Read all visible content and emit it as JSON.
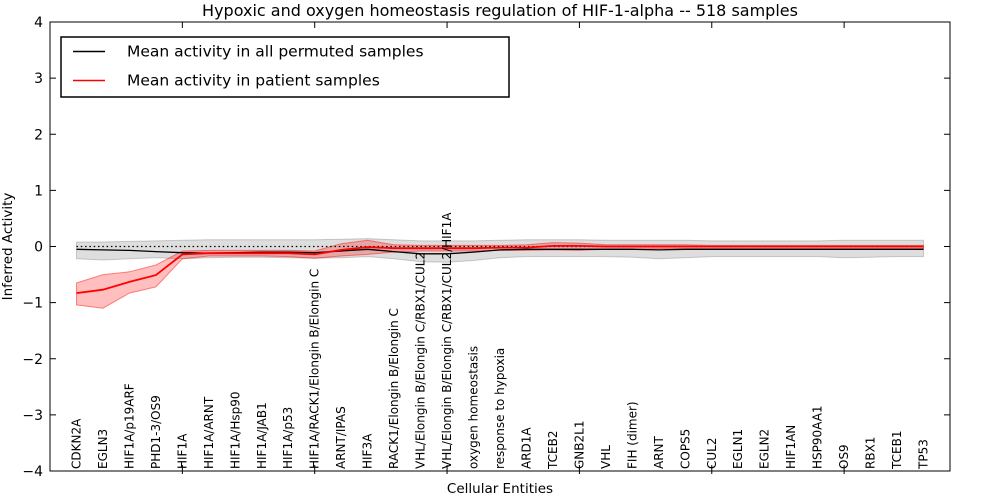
{
  "chart_data": {
    "type": "line",
    "title": "Hypoxic and oxygen homeostasis regulation of HIF-1-alpha -- 518 samples",
    "xlabel": "Cellular Entities",
    "ylabel": "Inferred Activity",
    "ylim": [
      -4,
      4
    ],
    "xlim_units": [
      -1,
      33
    ],
    "grid": false,
    "legend_position": "upper left",
    "yticks": [
      {
        "value": 4,
        "label": "4"
      },
      {
        "value": 3,
        "label": "3"
      },
      {
        "value": 2,
        "label": "2"
      },
      {
        "value": 1,
        "label": "1"
      },
      {
        "value": 0,
        "label": "0"
      },
      {
        "value": -1,
        "label": "−1"
      },
      {
        "value": -2,
        "label": "−2"
      },
      {
        "value": -3,
        "label": "−3"
      },
      {
        "value": -4,
        "label": "−4"
      }
    ],
    "x_major_tick_indices": [
      4,
      9,
      14,
      19,
      24,
      29
    ],
    "zero_line": {
      "style": "dotted",
      "color": "#000000",
      "y": 0
    },
    "categories": [
      "CDKN2A",
      "EGLN3",
      "HIF1A/p19ARF",
      "PHD1-3/OS9",
      "HIF1A",
      "HIF1A/ARNT",
      "HIF1A/Hsp90",
      "HIF1A/JAB1",
      "HIF1A/p53",
      "HIF1A/RACK1/Elongin B/Elongin C",
      "ARNT/IPAS",
      "HIF3A",
      "RACK1/Elongin B/Elongin C",
      "VHL/Elongin B/Elongin C/RBX1/CUL2",
      "VHL/Elongin B/Elongin C/RBX1/CUL2/HIF1A",
      "oxygen homeostasis",
      "response to hypoxia",
      "ARD1A",
      "TCEB2",
      "GNB2L1",
      "VHL",
      "FIH (dimer)",
      "ARNT",
      "COPS5",
      "CUL2",
      "EGLN1",
      "EGLN2",
      "HIF1AN",
      "HSP90AA1",
      "OS9",
      "RBX1",
      "TCEB1",
      "TP53"
    ],
    "series": [
      {
        "name": "Mean activity in all permuted samples",
        "color": "#000000",
        "line_width": 1.3,
        "values": [
          -0.05,
          -0.06,
          -0.07,
          -0.09,
          -0.11,
          -0.12,
          -0.11,
          -0.1,
          -0.1,
          -0.11,
          -0.08,
          -0.05,
          -0.09,
          -0.13,
          -0.13,
          -0.1,
          -0.06,
          -0.05,
          -0.05,
          -0.05,
          -0.05,
          -0.05,
          -0.06,
          -0.05,
          -0.05,
          -0.05,
          -0.05,
          -0.05,
          -0.05,
          -0.05,
          -0.05,
          -0.05,
          -0.05
        ],
        "band": {
          "fill": "rgba(0,0,0,0.13)",
          "edge": "rgba(0,0,0,0.18)",
          "upper": [
            0.08,
            0.08,
            0.09,
            0.1,
            0.11,
            0.12,
            0.12,
            0.12,
            0.12,
            0.12,
            0.13,
            0.14,
            0.12,
            0.1,
            0.1,
            0.1,
            0.11,
            0.12,
            0.12,
            0.12,
            0.11,
            0.11,
            0.11,
            0.11,
            0.1,
            0.1,
            0.1,
            0.1,
            0.1,
            0.11,
            0.11,
            0.11,
            0.11
          ],
          "lower": [
            -0.22,
            -0.24,
            -0.22,
            -0.2,
            -0.22,
            -0.2,
            -0.19,
            -0.19,
            -0.2,
            -0.21,
            -0.2,
            -0.18,
            -0.22,
            -0.27,
            -0.28,
            -0.25,
            -0.2,
            -0.18,
            -0.18,
            -0.18,
            -0.18,
            -0.19,
            -0.22,
            -0.2,
            -0.18,
            -0.18,
            -0.18,
            -0.18,
            -0.18,
            -0.2,
            -0.19,
            -0.18,
            -0.18
          ]
        }
      },
      {
        "name": "Mean activity in patient samples",
        "color": "#ff0000",
        "line_width": 1.8,
        "values": [
          -0.83,
          -0.77,
          -0.63,
          -0.51,
          -0.14,
          -0.12,
          -0.12,
          -0.12,
          -0.12,
          -0.14,
          -0.06,
          -0.01,
          -0.03,
          -0.03,
          -0.03,
          -0.03,
          -0.02,
          -0.02,
          0.01,
          0.01,
          0.0,
          0.0,
          0.0,
          0.0,
          0.0,
          0.0,
          0.0,
          0.0,
          0.0,
          0.0,
          0.0,
          0.0,
          0.0
        ],
        "band": {
          "fill": "rgba(255,0,0,0.25)",
          "edge": "rgba(255,0,0,0.45)",
          "upper": [
            -0.65,
            -0.5,
            -0.45,
            -0.33,
            -0.08,
            -0.07,
            -0.07,
            -0.07,
            -0.07,
            -0.08,
            0.05,
            0.11,
            0.03,
            0.02,
            0.02,
            0.02,
            0.02,
            0.03,
            0.07,
            0.06,
            0.03,
            0.03,
            0.03,
            0.03,
            0.02,
            0.02,
            0.02,
            0.02,
            0.02,
            0.02,
            0.02,
            0.02,
            0.02
          ],
          "lower": [
            -1.04,
            -1.1,
            -0.83,
            -0.72,
            -0.22,
            -0.17,
            -0.17,
            -0.17,
            -0.18,
            -0.21,
            -0.17,
            -0.14,
            -0.1,
            -0.08,
            -0.08,
            -0.08,
            -0.07,
            -0.07,
            -0.06,
            -0.07,
            -0.05,
            -0.05,
            -0.04,
            -0.04,
            -0.04,
            -0.04,
            -0.04,
            -0.04,
            -0.04,
            -0.04,
            -0.04,
            -0.04,
            -0.04
          ]
        }
      }
    ]
  }
}
